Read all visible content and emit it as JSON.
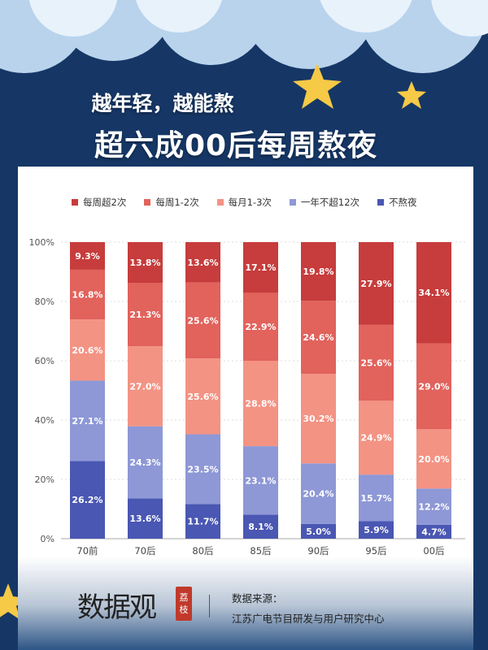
{
  "header": {
    "line1": "越年轻，越能熬",
    "line2": "超六成00后每周熬夜"
  },
  "colors": {
    "background": "#163766",
    "star": "#f6c946"
  },
  "chart_data": {
    "type": "bar",
    "stacked": true,
    "categories": [
      "70前",
      "70后",
      "80后",
      "85后",
      "90后",
      "95后",
      "00后"
    ],
    "ylim": [
      0,
      100
    ],
    "yticks": [
      "0%",
      "20%",
      "40%",
      "60%",
      "80%",
      "100%"
    ],
    "grid": true,
    "legend_position": "top",
    "series": [
      {
        "name": "不熬夜",
        "color": "#4a57b3",
        "values": [
          26.2,
          13.6,
          11.7,
          8.1,
          5.0,
          5.9,
          4.7
        ]
      },
      {
        "name": "一年不超12次",
        "color": "#8e98d6",
        "values": [
          27.1,
          24.3,
          23.5,
          23.1,
          20.4,
          15.7,
          12.2
        ]
      },
      {
        "name": "每月1-3次",
        "color": "#f39384",
        "values": [
          20.6,
          27.0,
          25.6,
          28.8,
          30.2,
          24.9,
          20.0
        ]
      },
      {
        "name": "每周1-2次",
        "color": "#e2625c",
        "values": [
          16.8,
          21.3,
          25.6,
          22.9,
          24.6,
          25.6,
          29.0
        ]
      },
      {
        "name": "每周超2次",
        "color": "#c73c3c",
        "values": [
          9.3,
          13.8,
          13.6,
          17.1,
          19.8,
          27.9,
          34.1
        ]
      }
    ]
  },
  "footer": {
    "logo": "数据观",
    "badge": [
      "荔",
      "枝"
    ],
    "source_label": "数据来源：",
    "source_org": "江苏广电节目研发与用户研究中心"
  }
}
